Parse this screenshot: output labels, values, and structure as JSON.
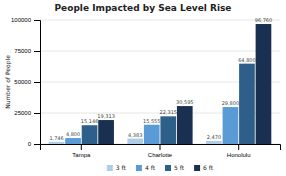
{
  "chart_data": {
    "type": "bar",
    "title": "People Impacted by Sea Level Rise",
    "ylabel": "Number of People",
    "categories": [
      "Tampa",
      "Charlotte",
      "Honolulu"
    ],
    "series": [
      {
        "name": "3 ft",
        "color": "#aecde8",
        "values": [
          1746,
          4383,
          2470
        ],
        "value_labels": [
          "1,746",
          "4,383",
          "2,470"
        ]
      },
      {
        "name": "4 ft",
        "color": "#5b9bd5",
        "values": [
          4800,
          15555,
          29800
        ],
        "value_labels": [
          "4,800",
          "15,555",
          "29,800"
        ]
      },
      {
        "name": "5 ft",
        "color": "#2e5f8a",
        "values": [
          15146,
          22315,
          64800
        ],
        "value_labels": [
          "15,146",
          "22,315",
          "64,800"
        ]
      },
      {
        "name": "6 ft",
        "color": "#1a3050",
        "values": [
          19313,
          30595,
          96760
        ],
        "value_labels": [
          "19,313",
          "30,595",
          "96,760"
        ]
      }
    ],
    "ylim": [
      0,
      100000
    ],
    "yticks": [
      0,
      25000,
      50000,
      75000,
      100000
    ],
    "grid": true,
    "legend": "bottom",
    "data_labels": true
  }
}
